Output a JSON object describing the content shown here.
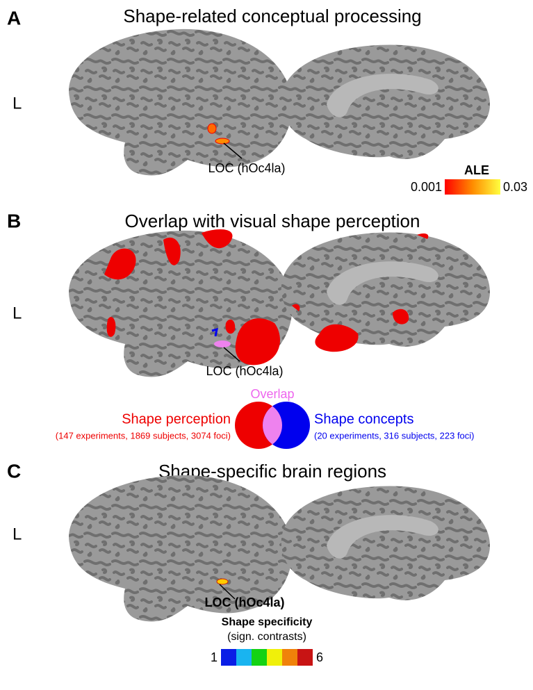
{
  "panels": [
    {
      "letter": "A",
      "title": "Shape-related conceptual processing",
      "hemisphere": "L",
      "region_label": "LOC (hOc4la)",
      "colorbar": {
        "title": "ALE",
        "min": "0.001",
        "max": "0.03"
      }
    },
    {
      "letter": "B",
      "title": "Overlap with visual shape perception",
      "hemisphere": "L",
      "region_label": "LOC (hOc4la)",
      "venn": {
        "overlap": "Overlap",
        "left": {
          "title": "Shape perception",
          "detail": "(147 experiments, 1869 subjects, 3074 foci)"
        },
        "right": {
          "title": "Shape concepts",
          "detail": "(20 experiments, 316 subjects, 223 foci)"
        }
      }
    },
    {
      "letter": "C",
      "title": "Shape-specific brain regions",
      "hemisphere": "L",
      "region_label": "LOC (hOc4la)",
      "colorbar": {
        "title": "Shape specificity",
        "subtitle": "(sign. contrasts)",
        "min": "1",
        "max": "6"
      }
    }
  ]
}
